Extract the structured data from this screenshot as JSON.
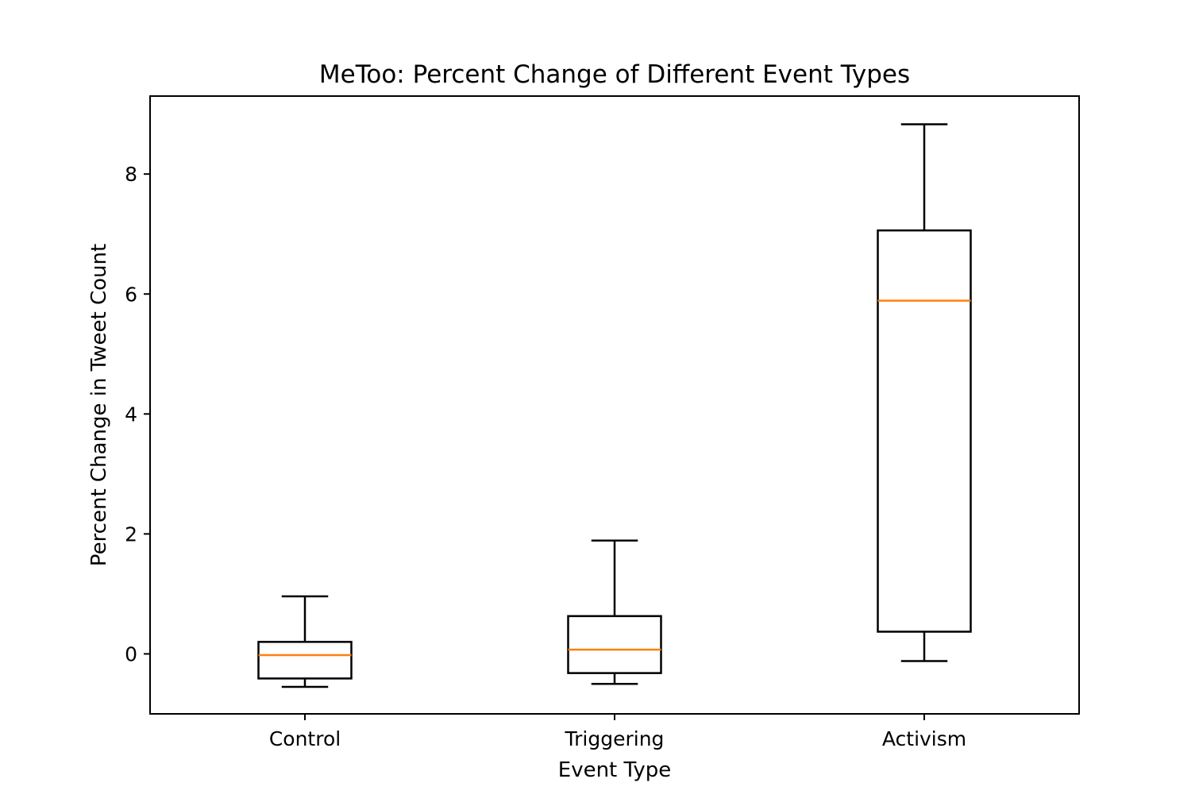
{
  "chart_data": {
    "type": "box",
    "title": "MeToo: Percent Change of Different Event Types",
    "xlabel": "Event Type",
    "ylabel": "Percent Change in Tweet Count",
    "ylim": [
      -1.0,
      9.3
    ],
    "yticks": [
      0,
      2,
      4,
      6,
      8
    ],
    "grid": false,
    "categories": [
      "Control",
      "Triggering",
      "Activism"
    ],
    "boxes": [
      {
        "category": "Control",
        "whisker_low": -0.55,
        "q1": -0.41,
        "median": -0.02,
        "q3": 0.2,
        "whisker_high": 0.96
      },
      {
        "category": "Triggering",
        "whisker_low": -0.5,
        "q1": -0.32,
        "median": 0.07,
        "q3": 0.63,
        "whisker_high": 1.89
      },
      {
        "category": "Activism",
        "whisker_low": -0.12,
        "q1": 0.37,
        "median": 5.89,
        "q3": 7.06,
        "whisker_high": 8.83
      }
    ],
    "colors": {
      "box": "#000000",
      "median": "#ff7f0e"
    }
  }
}
